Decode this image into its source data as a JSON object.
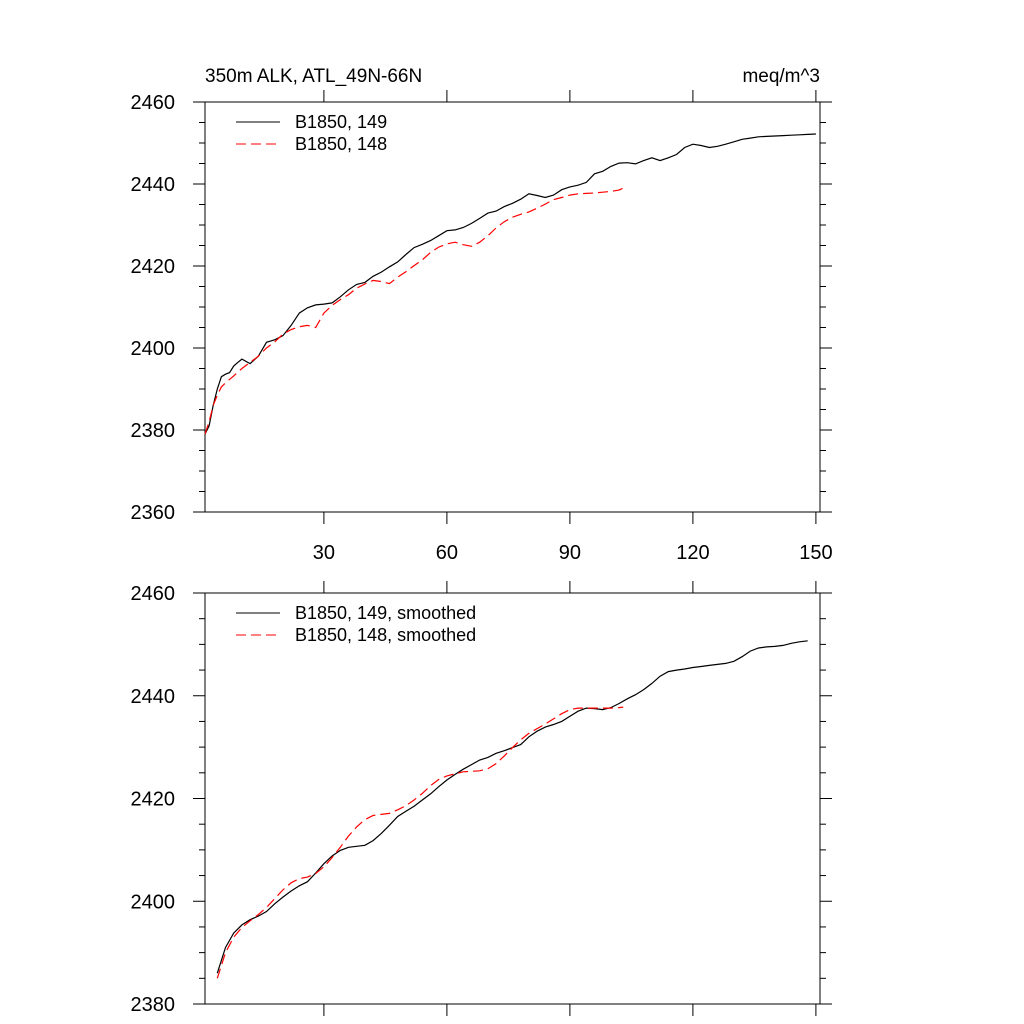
{
  "colors": {
    "series_149": "#000000",
    "series_148": "#ff0000",
    "background": "#ffffff",
    "axis": "#000000"
  },
  "chart_data": [
    {
      "type": "line",
      "title": "350m ALK, ATL_49N-66N",
      "units": "meq/m^3",
      "xlim": [
        1,
        151
      ],
      "ylim": [
        2360,
        2460
      ],
      "x_ticks": [
        30,
        60,
        90,
        120,
        150
      ],
      "x_tick_labels": [
        "30",
        "60",
        "90",
        "120",
        "150"
      ],
      "y_ticks": [
        2360,
        2380,
        2400,
        2420,
        2440,
        2460
      ],
      "y_tick_labels": [
        "2360",
        "2380",
        "2400",
        "2420",
        "2440",
        "2460"
      ],
      "grid": false,
      "legend_position": "top-left",
      "series": [
        {
          "name": "B1850, 149",
          "color": "#000000",
          "dash": "solid",
          "x": [
            1,
            2,
            3,
            4,
            5,
            6,
            7,
            8,
            9,
            10,
            12,
            14,
            16,
            18,
            20,
            22,
            24,
            26,
            28,
            30,
            32,
            34,
            36,
            38,
            40,
            42,
            44,
            46,
            48,
            50,
            52,
            54,
            56,
            58,
            60,
            62,
            64,
            66,
            68,
            70,
            72,
            74,
            76,
            78,
            80,
            82,
            84,
            86,
            88,
            90,
            92,
            94,
            96,
            98,
            100,
            102,
            104,
            106,
            108,
            110,
            112,
            114,
            116,
            118,
            120,
            122,
            124,
            126,
            128,
            130,
            132,
            134,
            136,
            138,
            140,
            142,
            144,
            146,
            148,
            150
          ],
          "values": [
            2379,
            2381,
            2386,
            2390,
            2393,
            2393.6,
            2394,
            2395.6,
            2396.5,
            2397.3,
            2396.2,
            2398,
            2401.4,
            2402,
            2403,
            2405.5,
            2408.5,
            2409.8,
            2410.5,
            2410.7,
            2411,
            2412.5,
            2414.2,
            2415.5,
            2416,
            2417.5,
            2418.5,
            2419.8,
            2421,
            2422.8,
            2424.5,
            2425.3,
            2426.2,
            2427.4,
            2428.6,
            2428.8,
            2429.4,
            2430.4,
            2431.6,
            2432.9,
            2433.4,
            2434.5,
            2435.3,
            2436.3,
            2437.6,
            2437.2,
            2436.7,
            2437.3,
            2438.6,
            2439.3,
            2439.7,
            2440.4,
            2442.5,
            2443.1,
            2444.3,
            2445.1,
            2445.2,
            2444.9,
            2445.7,
            2446.4,
            2445.7,
            2446.4,
            2447.2,
            2448.9,
            2449.7,
            2449.4,
            2448.9,
            2449.2,
            2449.7,
            2450.3,
            2450.9,
            2451.2,
            2451.5,
            2451.6,
            2451.7,
            2451.8,
            2451.9,
            2452,
            2452.1,
            2452.2
          ]
        },
        {
          "name": "B1850, 148",
          "color": "#ff0000",
          "dash": "dashed",
          "x": [
            1,
            2,
            3,
            4,
            5,
            6,
            8,
            10,
            12,
            14,
            16,
            18,
            20,
            22,
            24,
            26,
            28,
            30,
            32,
            34,
            36,
            38,
            40,
            42,
            44,
            46,
            48,
            50,
            52,
            54,
            56,
            58,
            60,
            62,
            64,
            66,
            68,
            70,
            72,
            74,
            76,
            78,
            80,
            82,
            84,
            86,
            88,
            90,
            92,
            94,
            96,
            98,
            100,
            102,
            103
          ],
          "values": [
            2379,
            2382,
            2386,
            2388.5,
            2390.5,
            2391.5,
            2393.2,
            2395,
            2396.5,
            2398,
            2400,
            2401.5,
            2403.4,
            2404.5,
            2405.2,
            2405.5,
            2405,
            2408.5,
            2410.4,
            2411.8,
            2413,
            2414.6,
            2415.6,
            2416.5,
            2416.2,
            2415.7,
            2417.3,
            2418.6,
            2420.1,
            2421.5,
            2423.3,
            2424.6,
            2425.4,
            2425.8,
            2425.2,
            2424.8,
            2425.8,
            2427.4,
            2429.3,
            2430.8,
            2431.9,
            2432.6,
            2433.2,
            2434.1,
            2435.1,
            2436.2,
            2436.7,
            2437.3,
            2437.6,
            2437.7,
            2437.8,
            2438,
            2438.2,
            2438.5,
            2439
          ]
        }
      ]
    },
    {
      "type": "line",
      "xlim": [
        1,
        151
      ],
      "ylim": [
        2380,
        2460
      ],
      "x_ticks": [
        30,
        60,
        90,
        120,
        150
      ],
      "y_ticks": [
        2380,
        2400,
        2420,
        2440,
        2460
      ],
      "y_tick_labels": [
        "2380",
        "2400",
        "2420",
        "2440",
        "2460"
      ],
      "grid": false,
      "legend_position": "top-left",
      "series": [
        {
          "name": "B1850, 149, smoothed",
          "color": "#000000",
          "dash": "solid",
          "x": [
            4,
            6,
            8,
            10,
            12,
            14,
            16,
            18,
            20,
            22,
            24,
            26,
            28,
            30,
            32,
            34,
            36,
            38,
            40,
            42,
            44,
            46,
            48,
            50,
            52,
            54,
            56,
            58,
            60,
            62,
            64,
            66,
            68,
            70,
            72,
            74,
            76,
            78,
            80,
            82,
            84,
            86,
            88,
            90,
            92,
            94,
            96,
            98,
            100,
            102,
            104,
            106,
            108,
            110,
            112,
            114,
            116,
            118,
            120,
            122,
            124,
            126,
            128,
            130,
            132,
            134,
            136,
            138,
            140,
            142,
            144,
            146,
            148
          ],
          "values": [
            2386,
            2391,
            2393.8,
            2395.4,
            2396.4,
            2397.1,
            2398,
            2399.5,
            2400.8,
            2402,
            2403,
            2403.8,
            2405.5,
            2407.3,
            2408.8,
            2409.9,
            2410.5,
            2410.7,
            2410.9,
            2411.8,
            2413.2,
            2414.8,
            2416.5,
            2417.5,
            2418.5,
            2419.7,
            2420.9,
            2422.3,
            2423.6,
            2424.7,
            2425.7,
            2426.6,
            2427.5,
            2428,
            2428.8,
            2429.3,
            2429.9,
            2430.5,
            2432,
            2433.1,
            2433.9,
            2434.4,
            2435,
            2436,
            2437,
            2437.6,
            2437.5,
            2437.3,
            2437.7,
            2438.5,
            2439.4,
            2440.2,
            2441.2,
            2442.4,
            2443.8,
            2444.7,
            2445,
            2445.2,
            2445.5,
            2445.7,
            2445.9,
            2446.1,
            2446.3,
            2446.7,
            2447.6,
            2448.7,
            2449.3,
            2449.5,
            2449.6,
            2449.8,
            2450.2,
            2450.5,
            2450.7
          ]
        },
        {
          "name": "B1850, 148, smoothed",
          "color": "#ff0000",
          "dash": "dashed",
          "x": [
            4,
            6,
            8,
            10,
            12,
            14,
            16,
            18,
            20,
            22,
            24,
            26,
            28,
            30,
            32,
            34,
            36,
            38,
            40,
            42,
            44,
            46,
            48,
            50,
            52,
            54,
            56,
            58,
            60,
            62,
            64,
            66,
            68,
            70,
            72,
            74,
            76,
            78,
            80,
            82,
            84,
            86,
            88,
            90,
            92,
            94,
            96,
            98,
            100,
            102,
            103
          ],
          "values": [
            2385,
            2390,
            2393,
            2394.9,
            2396.2,
            2397.4,
            2398.8,
            2400.5,
            2402.2,
            2403.6,
            2404.4,
            2404.7,
            2405.4,
            2406.7,
            2408.5,
            2410.5,
            2412.7,
            2414.5,
            2415.9,
            2416.7,
            2416.9,
            2417.1,
            2417.8,
            2418.6,
            2419.7,
            2421,
            2422.5,
            2423.7,
            2424.4,
            2424.8,
            2425.2,
            2425.3,
            2425.4,
            2425.8,
            2426.8,
            2428.3,
            2429.9,
            2431.4,
            2432.7,
            2433.6,
            2434.5,
            2435.5,
            2436.5,
            2437.3,
            2437.6,
            2437.6,
            2437.6,
            2437.6,
            2437.6,
            2437.7,
            2437.8
          ]
        }
      ]
    }
  ]
}
